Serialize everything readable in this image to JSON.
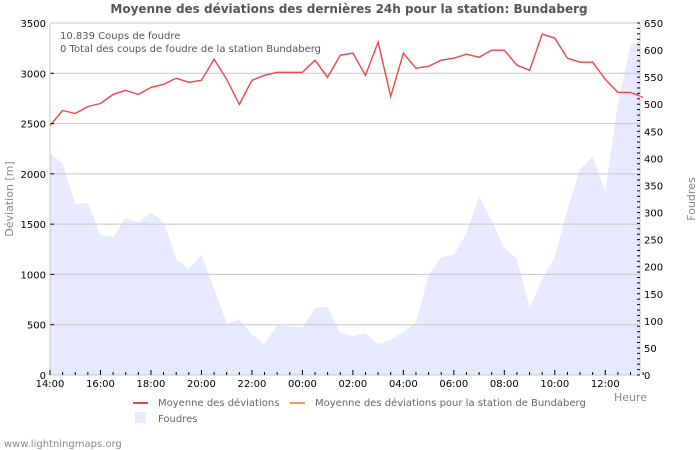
{
  "chart_data": {
    "type": "line",
    "title": "Moyenne des déviations des dernières 24h pour la station: Bundaberg",
    "info_lines": [
      "10.839  Coups de foudre",
      "0 Total des coups de foudre de la station Bundaberg"
    ],
    "xlabel": "Heure",
    "ylabel_left": "Déviation  [m]",
    "ylabel_right": "Foudres",
    "ylim_left": [
      0,
      3500
    ],
    "ylim_right": [
      0,
      650
    ],
    "yticks_left": [
      0,
      500,
      1000,
      1500,
      2000,
      2500,
      3000,
      3500
    ],
    "yticks_right": [
      0,
      50,
      100,
      150,
      200,
      250,
      300,
      350,
      400,
      450,
      500,
      550,
      600,
      650
    ],
    "xticks": [
      "14:00",
      "16:00",
      "18:00",
      "20:00",
      "22:00",
      "00:00",
      "02:00",
      "04:00",
      "06:00",
      "08:00",
      "10:00",
      "12:00"
    ],
    "grid": true,
    "legend": [
      {
        "label": "Moyenne des déviations",
        "color": "#ee4444",
        "kind": "line"
      },
      {
        "label": "Moyenne des déviations pour la station de Bundaberg",
        "color": "#ff9944",
        "kind": "line"
      },
      {
        "label": "Foudres",
        "color": "#e8e8ff",
        "kind": "area"
      }
    ],
    "x": [
      "14:00",
      "14:30",
      "15:00",
      "15:30",
      "16:00",
      "16:30",
      "17:00",
      "17:30",
      "18:00",
      "18:30",
      "19:00",
      "19:30",
      "20:00",
      "20:30",
      "21:00",
      "21:30",
      "22:00",
      "22:30",
      "23:00",
      "23:30",
      "00:00",
      "00:30",
      "01:00",
      "01:30",
      "02:00",
      "02:30",
      "03:00",
      "03:30",
      "04:00",
      "04:30",
      "05:00",
      "05:30",
      "06:00",
      "06:30",
      "07:00",
      "07:30",
      "08:00",
      "08:30",
      "09:00",
      "09:30",
      "10:00",
      "10:30",
      "11:00",
      "11:30",
      "12:00",
      "12:30",
      "13:00",
      "13:30"
    ],
    "series": [
      {
        "name": "Moyenne des déviations",
        "axis": "left",
        "color": "#ee4444",
        "values": [
          2480,
          2630,
          2600,
          2670,
          2700,
          2790,
          2830,
          2790,
          2860,
          2890,
          2950,
          2910,
          2930,
          3140,
          2940,
          2690,
          2930,
          2980,
          3010,
          3010,
          3010,
          3130,
          2960,
          3180,
          3200,
          2980,
          3310,
          2770,
          3200,
          3050,
          3070,
          3130,
          3150,
          3190,
          3160,
          3230,
          3230,
          3080,
          3030,
          3390,
          3350,
          3150,
          3110,
          3110,
          2940,
          2810,
          2810,
          2760
        ]
      },
      {
        "name": "Moyenne des déviations pour la station de Bundaberg",
        "axis": "left",
        "color": "#ff9944",
        "values": []
      },
      {
        "name": "Foudres",
        "axis": "right",
        "color": "#e8e8ff",
        "type": "area",
        "values": [
          410,
          390,
          315,
          318,
          258,
          255,
          290,
          282,
          300,
          283,
          215,
          195,
          222,
          160,
          95,
          103,
          75,
          57,
          92,
          90,
          87,
          124,
          126,
          78,
          72,
          77,
          57,
          65,
          80,
          96,
          185,
          218,
          222,
          262,
          330,
          285,
          234,
          215,
          125,
          177,
          218,
          305,
          380,
          403,
          340,
          500,
          610,
          620
        ]
      }
    ]
  },
  "footer": {
    "site": "www.lightningmaps.org"
  }
}
